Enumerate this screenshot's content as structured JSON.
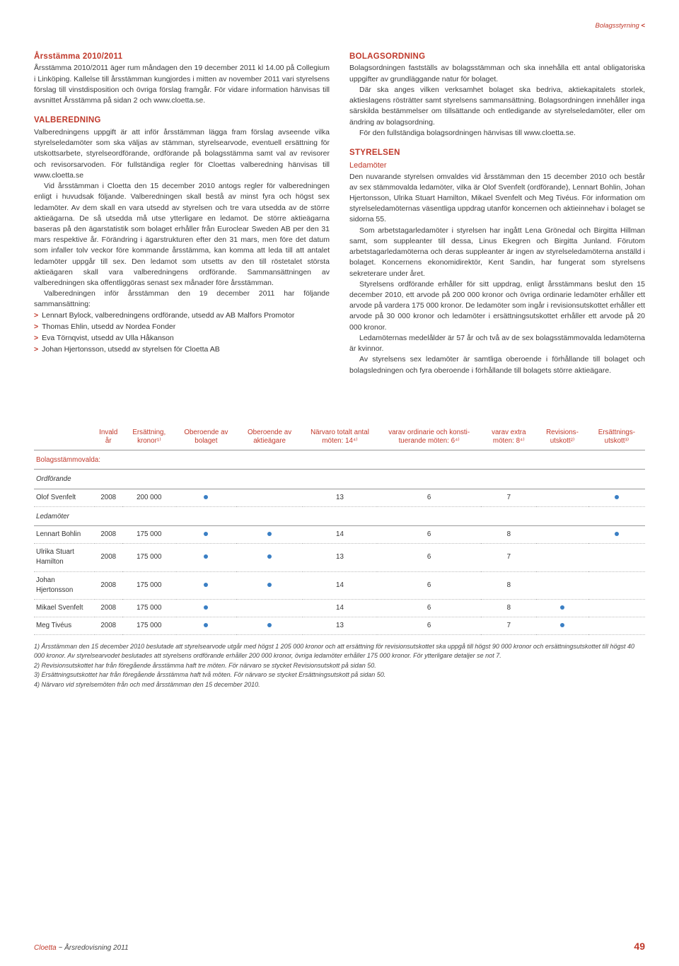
{
  "breadcrumb": {
    "label": "Bolagsstyrning",
    "marker": "<"
  },
  "left": {
    "h1": "Årsstämma 2010/2011",
    "p1": "Årsstämma 2010/2011 äger rum måndagen den 19 december 2011 kl 14.00 på Collegium i Linköping. Kallelse till årsstämman kungjordes i mitten av november 2011 vari styrelsens förslag till vinstdisposition och övriga förslag framgår. För vidare information hänvisas till avsnittet Årsstämma på sidan 2 och www.cloetta.se.",
    "h2": "VALBEREDNING",
    "p2": "Valberedningens uppgift är att inför årsstämman lägga fram förslag avseende vilka styrelseledamöter som ska väljas av stämman, styrelsearvode, eventuell ersättning för utskottsarbete, styrelseordförande, ordförande på bolagsstämma samt val av revisorer och revisorsarvoden. För fullständiga regler för Cloettas valberedning hänvisas till www.cloetta.se",
    "p2b": "Vid årsstämman i Cloetta den 15 december 2010 antogs regler för valberedningen enligt i huvudsak följande. Valberedningen skall bestå av minst fyra och högst sex ledamöter. Av dem skall en vara utsedd av styrelsen och tre vara utsedda av de större aktieägarna. De så utsedda må utse ytterligare en ledamot. De större aktieägarna baseras på den ägarstatistik som bolaget erhåller från Euroclear Sweden AB per den 31 mars respektive år. Förändring i ägarstrukturen efter den 31 mars, men före det datum som infaller tolv veckor före kommande årsstämma, kan komma att leda till att antalet ledamöter uppgår till sex. Den ledamot som utsetts av den till röstetalet största aktieägaren skall vara valberedningens ordförande. Sammansättningen av valberedningen ska offentliggöras senast sex månader före årsstämman.",
    "p2c": "Valberedningen inför årsstämman den 19 december 2011 har följande sammansättning:",
    "items": [
      "Lennart Bylock, valberedningens ordförande, utsedd av AB Malfors Promotor",
      "Thomas Ehlin, utsedd av Nordea Fonder",
      "Eva Törnqvist, utsedd av Ulla Håkanson",
      "Johan Hjertonsson, utsedd av styrelsen för Cloetta AB"
    ]
  },
  "right": {
    "h1": "BOLAGSORDNING",
    "p1": "Bolagsordningen fastställs av bolagsstämman och ska innehålla ett antal obligatoriska uppgifter av grundläggande natur för bolaget.",
    "p1b": "Där ska anges vilken verksamhet bolaget ska bedriva, aktiekapitalets storlek, aktieslagens rösträtter samt styrelsens sammansättning. Bolagsordningen innehåller inga särskilda bestämmelser om tillsättande och entledigande av styrelseledamöter, eller om ändring av bolagsordning.",
    "p1c": "För den fullständiga bolagsordningen hänvisas till www.cloetta.se.",
    "h2": "STYRELSEN",
    "sub": "Ledamöter",
    "p2": "Den nuvarande styrelsen omvaldes vid årsstämman den 15 december 2010 och består av sex stämmovalda ledamöter, vilka är Olof Svenfelt (ordförande), Lennart Bohlin, Johan Hjertonsson, Ulrika Stuart Hamilton, Mikael Svenfelt och Meg Tivéus. För information om styrelseledamöternas väsentliga uppdrag utanför koncernen och aktieinnehav i bolaget se sidorna 55.",
    "p2b": "Som arbetstagarledamöter i styrelsen har ingått Lena Grönedal och Birgitta Hillman samt, som suppleanter till dessa, Linus Ekegren och Birgitta Junland. Förutom arbetstagarledamöterna och deras suppleanter är ingen av styrelseledamöterna anställd i bolaget. Koncernens ekonomidirektör, Kent Sandin, har fungerat som styrelsens sekreterare under året.",
    "p2c": "Styrelsens ordförande erhåller för sitt uppdrag, enligt årsstämmans beslut den 15 december 2010, ett arvode på 200 000 kronor och övriga ordinarie ledamöter erhåller ett arvode på vardera 175 000 kronor. De ledamöter som ingår i revisionsutskottet erhåller ett arvode på 30 000 kronor och ledamöter i ersättningsutskottet erhåller ett arvode på 20 000 kronor.",
    "p2d": "Ledamöternas medelålder är 57 år och två av de sex bolagsstämmovalda ledamöterna är kvinnor.",
    "p2e": "Av styrelsens sex ledamöter är samtliga oberoende i förhållande till bolaget och bolagsledningen och fyra oberoende i förhållande till bolagets större aktieägare."
  },
  "table": {
    "columns": [
      "",
      "Invald år",
      "Ersättning, kronor¹⁾",
      "Oberoende av bolaget",
      "Oberoende av aktieägare",
      "Närvaro totalt antal möten: 14⁴⁾",
      "varav ordinarie och konsti-tuerande möten: 6⁴⁾",
      "varav extra möten: 8⁴⁾",
      "Revisions-utskott²⁾",
      "Ersättnings-utskott³⁾"
    ],
    "section1": "Bolagsstämmovalda:",
    "section1b": "Ordförande",
    "row_olof": [
      "Olof Svenfelt",
      "2008",
      "200 000",
      true,
      false,
      "13",
      "6",
      "7",
      false,
      true
    ],
    "section2": "Ledamöter",
    "rows": [
      [
        "Lennart Bohlin",
        "2008",
        "175 000",
        true,
        true,
        "14",
        "6",
        "8",
        false,
        true
      ],
      [
        "Ulrika Stuart Hamilton",
        "2008",
        "175 000",
        true,
        true,
        "13",
        "6",
        "7",
        false,
        false
      ],
      [
        "Johan Hjertonsson",
        "2008",
        "175 000",
        true,
        true,
        "14",
        "6",
        "8",
        false,
        false
      ],
      [
        "Mikael Svenfelt",
        "2008",
        "175 000",
        true,
        false,
        "14",
        "6",
        "8",
        true,
        false
      ],
      [
        "Meg Tivéus",
        "2008",
        "175 000",
        true,
        true,
        "13",
        "6",
        "7",
        true,
        false
      ]
    ]
  },
  "footnotes": [
    "1) Årsstämman den 15 december 2010 beslutade att styrelsearvode utgår med högst 1 205 000 kronor och att ersättning för revisionsutskottet ska uppgå till högst 90 000 kronor och ersättningsutskottet till högst 40 000 kronor. Av styrelsearvodet beslutades att styrelsens ordförande erhåller 200 000 kronor, övriga ledamöter erhåller 175 000 kronor. För ytterligare detaljer se not 7.",
    "2) Revisionsutskottet har från föregående årsstämma haft tre möten. För närvaro se stycket Revisionsutskott på sidan 50.",
    "3) Ersättningsutskottet har från föregående årsstämma haft två möten. För närvaro se stycket Ersättningsutskott på sidan 50.",
    "4) Närvaro vid styrelsemöten från och med årsstämman den 15 december 2010."
  ],
  "footer": {
    "brand": "Cloetta",
    "sep": "~",
    "doc": "Årsredovisning 2011",
    "page": "49"
  },
  "colors": {
    "accent": "#c0392b",
    "dot": "#3a7fc4",
    "text": "#333333",
    "bg": "#ffffff"
  }
}
